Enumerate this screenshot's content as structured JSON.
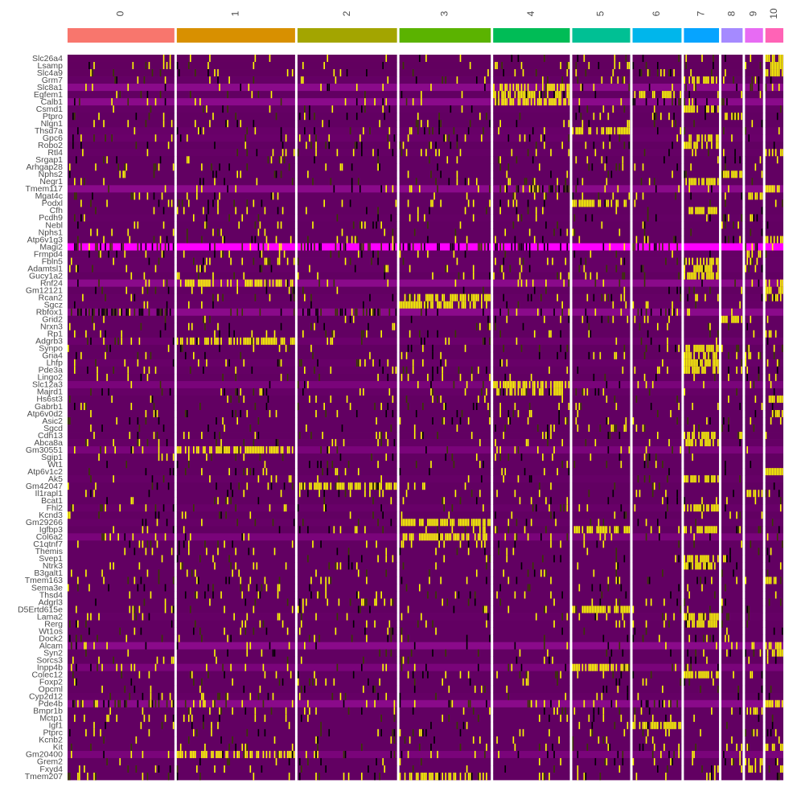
{
  "chart_data": {
    "type": "heatmap",
    "title": "",
    "xlabel": "",
    "ylabel": "",
    "legend": "none",
    "grid": false,
    "color_scale": {
      "low": "#ff00ff",
      "mid": "#000000",
      "high": "#ffff00",
      "base": "#6a006a"
    },
    "clusters": [
      {
        "label": "0",
        "color": "#f8766d",
        "cells": 131
      },
      {
        "label": "1",
        "color": "#d89000",
        "cells": 145
      },
      {
        "label": "2",
        "color": "#a3a500",
        "cells": 122
      },
      {
        "label": "3",
        "color": "#5bb300",
        "cells": 112
      },
      {
        "label": "4",
        "color": "#00bc56",
        "cells": 94
      },
      {
        "label": "5",
        "color": "#00c094",
        "cells": 71
      },
      {
        "label": "6",
        "color": "#00b6eb",
        "cells": 60
      },
      {
        "label": "7",
        "color": "#06a4ff",
        "cells": 43
      },
      {
        "label": "8",
        "color": "#a58aff",
        "cells": 26
      },
      {
        "label": "9",
        "color": "#e76bf3",
        "cells": 22
      },
      {
        "label": "10",
        "color": "#ff63b6",
        "cells": 22
      }
    ],
    "genes": [
      {
        "name": "Slc26a4",
        "base": "#63005f",
        "high": [
          10
        ]
      },
      {
        "name": "Lsamp",
        "base": "#62005f",
        "high": [
          10
        ]
      },
      {
        "name": "Slc4a9",
        "base": "#62005f",
        "high": [
          10
        ]
      },
      {
        "name": "Grm7",
        "base": "#650065",
        "high": [
          7
        ]
      },
      {
        "name": "Slc8a1",
        "base": "#8a0a8a",
        "high": [
          4
        ],
        "dark": [
          9
        ]
      },
      {
        "name": "Egfem1",
        "base": "#620062",
        "high": [
          4,
          6
        ]
      },
      {
        "name": "Calb1",
        "base": "#8a0a8a",
        "high": [
          4
        ],
        "dark": [
          6
        ]
      },
      {
        "name": "Csmd1",
        "base": "#640064",
        "high": [
          7
        ]
      },
      {
        "name": "Ptpro",
        "base": "#620062",
        "high": [
          8
        ]
      },
      {
        "name": "Nlgn1",
        "base": "#620062",
        "high": []
      },
      {
        "name": "Thsd7a",
        "base": "#680068",
        "high": [
          5
        ]
      },
      {
        "name": "Gpc6",
        "base": "#6a006a",
        "high": [
          7
        ]
      },
      {
        "name": "Robo2",
        "base": "#620062",
        "high": [
          7
        ]
      },
      {
        "name": "Rtl4",
        "base": "#650065",
        "high": [
          10
        ]
      },
      {
        "name": "Srgap1",
        "base": "#620062",
        "high": []
      },
      {
        "name": "Arhgap28",
        "base": "#620062",
        "high": []
      },
      {
        "name": "Nphs2",
        "base": "#620062",
        "high": [
          8
        ]
      },
      {
        "name": "Negr1",
        "base": "#620062",
        "high": [
          7
        ]
      },
      {
        "name": "Tmem117",
        "base": "#8a0a8a",
        "high": [
          10
        ],
        "dark": [
          4
        ]
      },
      {
        "name": "Mgat4c",
        "base": "#620062",
        "high": [
          9
        ]
      },
      {
        "name": "Podxl",
        "base": "#620062",
        "high": [
          5
        ]
      },
      {
        "name": "Cfh",
        "base": "#620062",
        "high": [
          7
        ]
      },
      {
        "name": "Pcdh9",
        "base": "#640064",
        "high": []
      },
      {
        "name": "Nebl",
        "base": "#620062",
        "high": []
      },
      {
        "name": "Nphs1",
        "base": "#620062",
        "high": []
      },
      {
        "name": "Atp6v1g3",
        "base": "#620062",
        "high": [
          10
        ]
      },
      {
        "name": "Magi2",
        "base": "#ff00ff",
        "high": [],
        "dark": [
          0,
          2,
          3,
          4,
          6,
          9
        ]
      },
      {
        "name": "Frmpd4",
        "base": "#650065",
        "high": [
          9
        ]
      },
      {
        "name": "Fbln5",
        "base": "#660066",
        "high": [
          7
        ]
      },
      {
        "name": "Adamtsl1",
        "base": "#660066",
        "high": [
          7
        ]
      },
      {
        "name": "Gucy1a2",
        "base": "#620062",
        "high": [
          7
        ]
      },
      {
        "name": "Rnf24",
        "base": "#8a0a8a",
        "high": [
          1,
          10
        ]
      },
      {
        "name": "Gm12121",
        "base": "#620062",
        "high": [
          10
        ]
      },
      {
        "name": "Rcan2",
        "base": "#650065",
        "high": [
          3,
          10
        ]
      },
      {
        "name": "Sgcz",
        "base": "#660066",
        "high": [
          3
        ]
      },
      {
        "name": "Rbfox1",
        "base": "#8a0a8a",
        "high": [],
        "dark": [
          0,
          2,
          6
        ]
      },
      {
        "name": "Grid2",
        "base": "#620062",
        "high": [
          8
        ]
      },
      {
        "name": "Nrxn3",
        "base": "#620062",
        "high": []
      },
      {
        "name": "Rp1",
        "base": "#620062",
        "high": [
          10
        ]
      },
      {
        "name": "Adgrb3",
        "base": "#6c006c",
        "high": [
          1
        ]
      },
      {
        "name": "Synpo",
        "base": "#620062",
        "high": [
          7
        ]
      },
      {
        "name": "Gria4",
        "base": "#620062",
        "high": [
          7
        ]
      },
      {
        "name": "Lhfp",
        "base": "#680068",
        "high": [
          7
        ]
      },
      {
        "name": "Pde3a",
        "base": "#640064",
        "high": [
          7
        ]
      },
      {
        "name": "Lingo2",
        "base": "#620062",
        "high": []
      },
      {
        "name": "Slc12a3",
        "base": "#7a047a",
        "high": [
          4
        ]
      },
      {
        "name": "Majrd1",
        "base": "#660066",
        "high": [
          4
        ]
      },
      {
        "name": "Hs6st3",
        "base": "#620062",
        "high": [
          10
        ]
      },
      {
        "name": "Gabrb1",
        "base": "#620062",
        "high": []
      },
      {
        "name": "Atp6v0d2",
        "base": "#620062",
        "high": [
          10
        ]
      },
      {
        "name": "Asic2",
        "base": "#620062",
        "high": []
      },
      {
        "name": "Sgcd",
        "base": "#620062",
        "high": []
      },
      {
        "name": "Cdh13",
        "base": "#620062",
        "high": [
          7
        ]
      },
      {
        "name": "Abca8a",
        "base": "#650065",
        "high": [
          7
        ]
      },
      {
        "name": "Gm30551",
        "base": "#7a047a",
        "high": [
          1
        ]
      },
      {
        "name": "Sgip1",
        "base": "#620062",
        "high": []
      },
      {
        "name": "Wt1",
        "base": "#620062",
        "high": []
      },
      {
        "name": "Atp6v1c2",
        "base": "#620062",
        "high": [
          10
        ]
      },
      {
        "name": "Ak5",
        "base": "#660066",
        "high": [
          7
        ]
      },
      {
        "name": "Gm42047",
        "base": "#620062",
        "high": [
          2
        ]
      },
      {
        "name": "Il1rapl1",
        "base": "#620062",
        "high": [
          9
        ]
      },
      {
        "name": "Bcat1",
        "base": "#620062",
        "high": []
      },
      {
        "name": "Fhl2",
        "base": "#680068",
        "high": [
          7
        ]
      },
      {
        "name": "Kcnd3",
        "base": "#620062",
        "high": []
      },
      {
        "name": "Gm29266",
        "base": "#660066",
        "high": [
          3
        ]
      },
      {
        "name": "Igfbp3",
        "base": "#620062",
        "high": [
          5,
          7
        ]
      },
      {
        "name": "Col6a2",
        "base": "#7a047a",
        "high": [
          3
        ]
      },
      {
        "name": "C1qtnf7",
        "base": "#620062",
        "high": []
      },
      {
        "name": "Themis",
        "base": "#620062",
        "high": []
      },
      {
        "name": "Svep1",
        "base": "#620062",
        "high": [
          7
        ]
      },
      {
        "name": "Ntrk3",
        "base": "#620062",
        "high": [
          7
        ]
      },
      {
        "name": "B3galt1",
        "base": "#620062",
        "high": []
      },
      {
        "name": "Tmem163",
        "base": "#620062",
        "high": [
          10
        ]
      },
      {
        "name": "Sema3e",
        "base": "#620062",
        "high": []
      },
      {
        "name": "Thsd4",
        "base": "#620062",
        "high": []
      },
      {
        "name": "Adgrl3",
        "base": "#620062",
        "high": []
      },
      {
        "name": "D5Ertd615e",
        "base": "#620062",
        "high": [
          5
        ]
      },
      {
        "name": "Lama2",
        "base": "#650065",
        "high": [
          7
        ]
      },
      {
        "name": "Rerg",
        "base": "#620062",
        "high": [
          7
        ]
      },
      {
        "name": "Wt1os",
        "base": "#620062",
        "high": []
      },
      {
        "name": "Dock2",
        "base": "#620062",
        "high": []
      },
      {
        "name": "Alcam",
        "base": "#8a0a8a",
        "high": [
          10
        ]
      },
      {
        "name": "Syn2",
        "base": "#620062",
        "high": [
          10
        ]
      },
      {
        "name": "Sorcs3",
        "base": "#620062",
        "high": []
      },
      {
        "name": "Inpp4b",
        "base": "#7a047a",
        "high": [
          5
        ]
      },
      {
        "name": "Colec12",
        "base": "#620062",
        "high": [
          7
        ]
      },
      {
        "name": "Foxp2",
        "base": "#620062",
        "high": []
      },
      {
        "name": "Opcml",
        "base": "#620062",
        "high": []
      },
      {
        "name": "Cyp2d12",
        "base": "#650065",
        "high": []
      },
      {
        "name": "Pde4b",
        "base": "#8a0a8a",
        "high": [
          10
        ],
        "dark": [
          0,
          6
        ]
      },
      {
        "name": "Bmpr1b",
        "base": "#620062",
        "high": [
          9
        ]
      },
      {
        "name": "Mctp1",
        "base": "#620062",
        "high": []
      },
      {
        "name": "Igf1",
        "base": "#620062",
        "high": [
          6
        ]
      },
      {
        "name": "Ptprc",
        "base": "#620062",
        "high": []
      },
      {
        "name": "Kcnb2",
        "base": "#620062",
        "high": []
      },
      {
        "name": "Kit",
        "base": "#620062",
        "high": [
          10
        ]
      },
      {
        "name": "Gm20400",
        "base": "#7a047a",
        "high": [
          1
        ]
      },
      {
        "name": "Grem2",
        "base": "#620062",
        "high": [
          9
        ]
      },
      {
        "name": "Fxyd4",
        "base": "#620062",
        "high": [
          9
        ]
      },
      {
        "name": "Tmem207",
        "base": "#620062",
        "high": [
          3
        ]
      }
    ]
  }
}
